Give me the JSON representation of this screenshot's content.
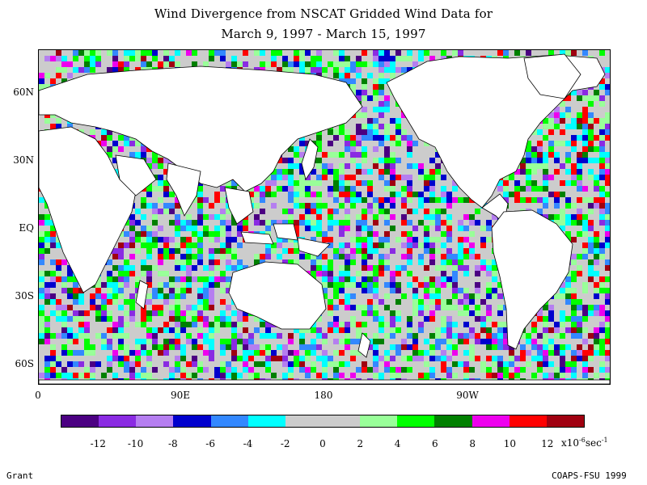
{
  "title": {
    "line1": "Wind Divergence from NSCAT Gridded Wind Data for",
    "line2": "March 9, 1997 - March 15, 1997"
  },
  "lat_labels": [
    "60N",
    "30N",
    "EQ",
    "30S",
    "60S"
  ],
  "lon_labels": [
    "0",
    "90E",
    "180",
    "90W"
  ],
  "colorbar": {
    "colors": [
      "#4b0082",
      "#8a2be2",
      "#b57ef0",
      "#0000cd",
      "#3388ff",
      "#00ffff",
      "#cccccc",
      "#cccccc",
      "#99ff99",
      "#00ff00",
      "#008000",
      "#ee00ee",
      "#ff0000",
      "#a00010"
    ],
    "labels": [
      "-12",
      "-10",
      "-8",
      "-6",
      "-4",
      "-2",
      "0",
      "2",
      "4",
      "6",
      "8",
      "10",
      "12"
    ],
    "units_base": "x10",
    "units_exp": "-6",
    "units_tail": "sec",
    "units_tail_exp": "-1"
  },
  "credits": {
    "left": "Grant",
    "right": "COAPS-FSU 1999"
  }
}
